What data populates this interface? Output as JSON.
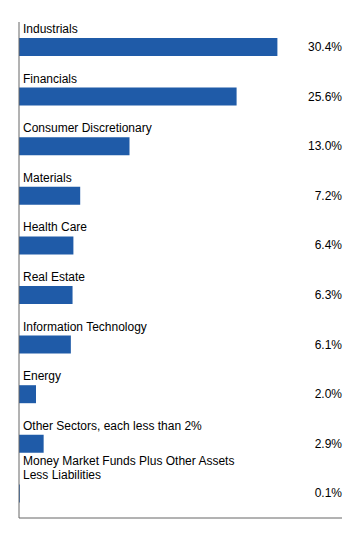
{
  "chart_data": {
    "type": "bar",
    "orientation": "horizontal",
    "categories": [
      "Industrials",
      "Financials",
      "Consumer Discretionary",
      "Materials",
      "Health Care",
      "Real Estate",
      "Information Technology",
      "Energy",
      "Other Sectors, each less than 2%",
      "Money Market Funds Plus Other Assets\nLess Liabilities"
    ],
    "values": [
      30.4,
      25.6,
      13.0,
      7.2,
      6.4,
      6.3,
      6.1,
      2.0,
      2.9,
      0.1
    ],
    "value_labels": [
      "30.4%",
      "25.6%",
      "13.0%",
      "7.2%",
      "6.4%",
      "6.3%",
      "6.1%",
      "2.0%",
      "2.9%",
      "0.1%"
    ],
    "data_labels": true,
    "color": "#1F5BA8",
    "xlim": [
      0,
      38
    ],
    "tick_labels": false
  }
}
